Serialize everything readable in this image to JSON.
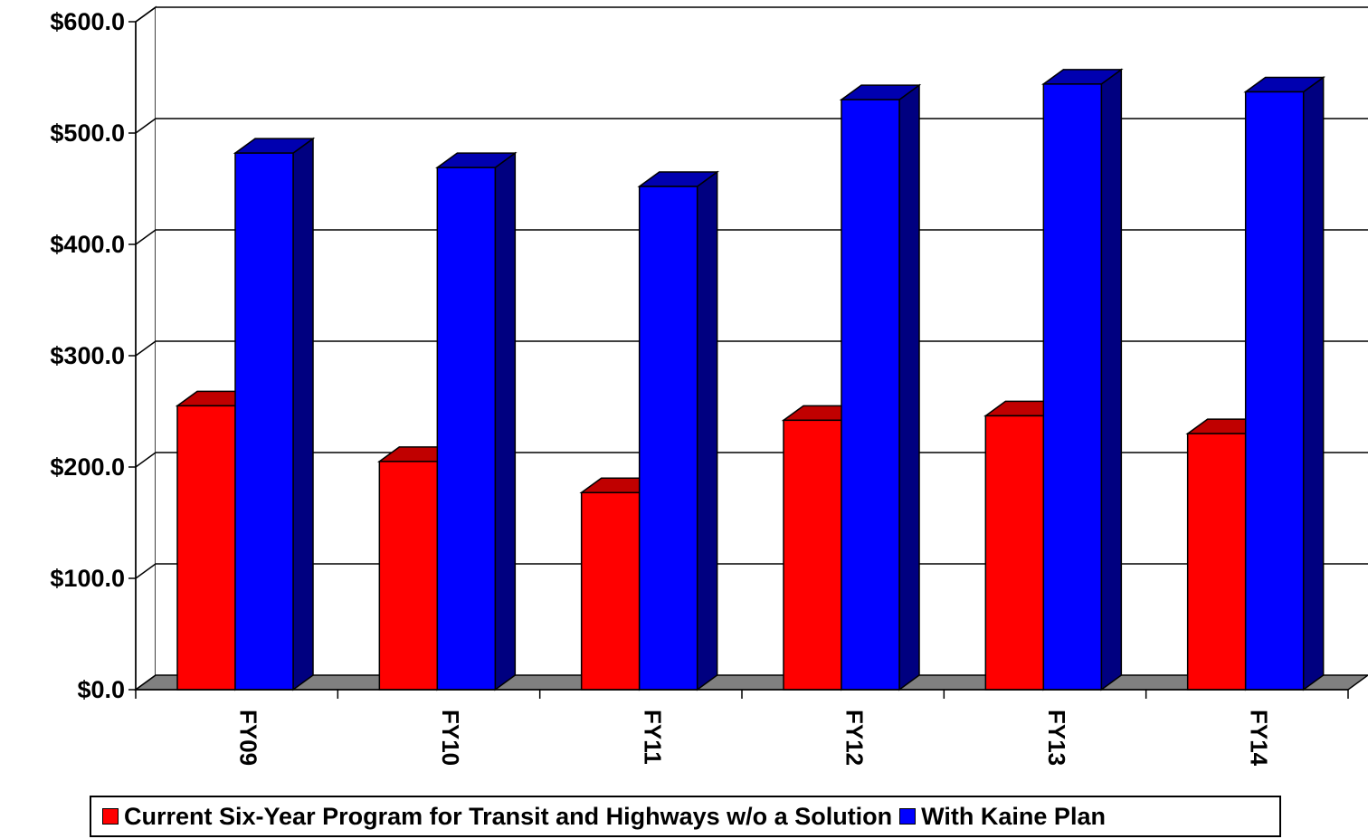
{
  "chart_data": {
    "type": "bar",
    "title": "",
    "xlabel": "",
    "ylabel": "",
    "categories": [
      "FY09",
      "FY10",
      "FY11",
      "FY12",
      "FY13",
      "FY14"
    ],
    "y_ticks": [
      "$0.0",
      "$100.0",
      "$200.0",
      "$300.0",
      "$400.0",
      "$500.0",
      "$600.0"
    ],
    "ylim": [
      0,
      600
    ],
    "grid": true,
    "style": "3d-clustered-column",
    "legend_position": "bottom",
    "series": [
      {
        "name": "Current Six-Year Program for Transit and Highways w/o a Solution",
        "color": "#ff0000",
        "side_color": "#800000",
        "values": [
          255,
          205,
          177,
          242,
          246,
          230
        ]
      },
      {
        "name": "With Kaine Plan",
        "color": "#0000ff",
        "side_color": "#000080",
        "values": [
          482,
          469,
          452,
          530,
          544,
          537
        ]
      }
    ]
  }
}
